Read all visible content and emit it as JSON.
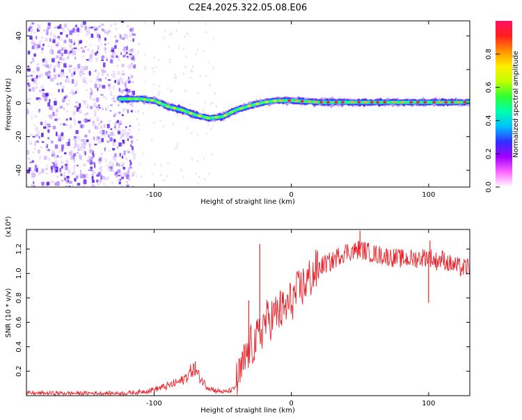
{
  "title": "C2E4.2025.322.05.08.E06",
  "colors": {
    "trace": "#e8232a",
    "scatter": "#6a2cf0",
    "axis": "#000000",
    "colorbar_stops": [
      "#ffffff",
      "#ff66ff",
      "#a000ff",
      "#3030ff",
      "#00c0ff",
      "#00ffb0",
      "#30ff30",
      "#c0ff00",
      "#ffee00",
      "#ff9000",
      "#ff2020",
      "#ff1060"
    ]
  },
  "chart_data": [
    {
      "type": "heatmap",
      "name": "spectrogram",
      "title": "C2E4.2025.322.05.08.E06",
      "xlabel": "Height of straight line (km)",
      "ylabel": "Frequency (Hz)",
      "xlim": [
        -193,
        130
      ],
      "ylim": [
        -50,
        49
      ],
      "x_ticks": [
        -100,
        0,
        100
      ],
      "x_tick_labels": [
        "-100",
        "0",
        "100"
      ],
      "y_ticks": [
        -40,
        -20,
        0,
        20,
        40
      ],
      "y_tick_labels": [
        "-40",
        "-20",
        "0",
        "20",
        "40"
      ],
      "ridge": {
        "x": [
          -125,
          -110,
          -100,
          -90,
          -80,
          -70,
          -60,
          -50,
          -40,
          -30,
          -20,
          -10,
          0,
          20,
          60,
          100,
          130
        ],
        "y": [
          2.5,
          2.5,
          1.5,
          -2,
          -4,
          -7,
          -9,
          -8,
          -4,
          -1.5,
          0.5,
          1.5,
          1.5,
          0.5,
          0.5,
          0.5,
          0.5
        ]
      },
      "noise_region_x": [
        -193,
        -115
      ],
      "colorbar": {
        "label": "Normalized spectral amplitude",
        "range": [
          0,
          1
        ],
        "ticks": [
          0.0,
          0.2,
          0.4,
          0.6,
          0.8
        ],
        "tick_labels": [
          "0.0",
          "0.2",
          "0.4",
          "0.6",
          "0.8"
        ]
      }
    },
    {
      "type": "line",
      "name": "snr",
      "xlabel": "Height of straight line (km)",
      "ylabel": "SNR (10 * v/v)",
      "y_scale_label": "(x10⁴)",
      "xlim": [
        -193,
        130
      ],
      "ylim": [
        0,
        1.36
      ],
      "x_ticks": [
        -100,
        0,
        100
      ],
      "x_tick_labels": [
        "-100",
        "0",
        "100"
      ],
      "y_ticks": [
        0.2,
        0.4,
        0.6,
        0.8,
        1.0,
        1.2
      ],
      "y_tick_labels": [
        "0.2",
        "0.4",
        "0.6",
        "0.8",
        "1.0",
        "1.2"
      ],
      "series": [
        {
          "name": "SNR",
          "x": [
            -193,
            -180,
            -160,
            -140,
            -120,
            -110,
            -100,
            -90,
            -80,
            -75,
            -72,
            -68,
            -62,
            -55,
            -48,
            -42,
            -38,
            -35,
            -32,
            -30,
            -28,
            -25,
            -22,
            -20,
            -15,
            -10,
            -5,
            0,
            5,
            10,
            15,
            20,
            25,
            30,
            35,
            40,
            45,
            50,
            55,
            60,
            70,
            80,
            90,
            100,
            105,
            110,
            115,
            120,
            125,
            130
          ],
          "y": [
            0.02,
            0.02,
            0.02,
            0.02,
            0.02,
            0.03,
            0.05,
            0.08,
            0.12,
            0.17,
            0.22,
            0.17,
            0.08,
            0.04,
            0.03,
            0.05,
            0.15,
            0.25,
            0.35,
            0.4,
            0.42,
            0.45,
            0.52,
            0.6,
            0.63,
            0.68,
            0.7,
            0.78,
            0.85,
            0.92,
            0.98,
            1.05,
            1.08,
            1.1,
            1.15,
            1.18,
            1.18,
            1.2,
            1.18,
            1.16,
            1.14,
            1.12,
            1.12,
            1.14,
            1.1,
            1.12,
            1.08,
            1.06,
            1.04,
            1.06
          ]
        }
      ],
      "spikes": [
        {
          "x": -70,
          "y": 0.28
        },
        {
          "x": -31,
          "y": 0.78
        },
        {
          "x": -23,
          "y": 1.24
        },
        {
          "x": -8,
          "y": 0.86
        },
        {
          "x": 50,
          "y": 1.35
        },
        {
          "x": 101,
          "y": 1.27
        },
        {
          "x": 100,
          "y": 0.76
        }
      ]
    }
  ]
}
